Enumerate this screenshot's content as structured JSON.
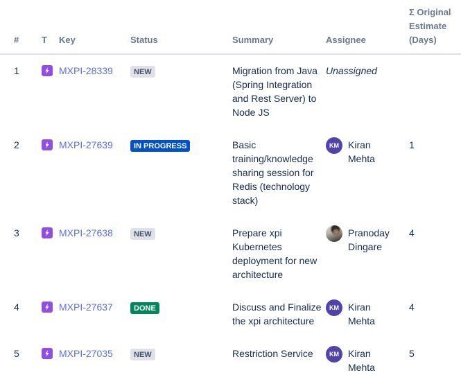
{
  "table": {
    "columns": [
      {
        "key": "num",
        "label": "#"
      },
      {
        "key": "type",
        "label": "T"
      },
      {
        "key": "key",
        "label": "Key"
      },
      {
        "key": "status",
        "label": "Status"
      },
      {
        "key": "summary",
        "label": "Summary"
      },
      {
        "key": "assignee",
        "label": "Assignee"
      },
      {
        "key": "estimate",
        "label": "Σ Original Estimate (Days)"
      }
    ],
    "rows": [
      {
        "num": "1",
        "type_icon": "epic-icon",
        "key": "MXPI-28339",
        "status": "NEW",
        "summary": "Migration from Java (Spring Integration and Rest Server) to Node JS",
        "assignee": {
          "name": "Unassigned",
          "unassigned": true
        },
        "estimate": ""
      },
      {
        "num": "2",
        "type_icon": "epic-icon",
        "key": "MXPI-27639",
        "status": "IN PROGRESS",
        "summary": "Basic training/knowledge sharing session for Redis (technology stack)",
        "assignee": {
          "name": "Kiran Mehta",
          "initials": "KM",
          "avatar": "initials"
        },
        "estimate": "1"
      },
      {
        "num": "3",
        "type_icon": "epic-icon",
        "key": "MXPI-27638",
        "status": "NEW",
        "summary": "Prepare xpi Kubernetes deployment for new architecture",
        "assignee": {
          "name": "Pranoday Dingare",
          "avatar": "photo"
        },
        "estimate": "4"
      },
      {
        "num": "4",
        "type_icon": "epic-icon",
        "key": "MXPI-27637",
        "status": "DONE",
        "summary": "Discuss and Finalize the xpi architecture",
        "assignee": {
          "name": "Kiran Mehta",
          "initials": "KM",
          "avatar": "initials"
        },
        "estimate": "4"
      },
      {
        "num": "5",
        "type_icon": "epic-icon",
        "key": "MXPI-27035",
        "status": "NEW",
        "summary": "Restriction Service",
        "assignee": {
          "name": "Kiran Mehta",
          "initials": "KM",
          "avatar": "initials"
        },
        "estimate": "5"
      }
    ]
  },
  "colors": {
    "text": "#172B4D",
    "header_text": "#6B778C",
    "issue_key_link": "#5B6EE1",
    "header_border": "#DFE1E6",
    "epic_icon": "#904EE2",
    "badge_new_bg": "#DFE1E6",
    "badge_new_text": "#42526E",
    "badge_in_progress_bg": "#0052CC",
    "badge_done_bg": "#00875A",
    "avatar_initials_bg": "#5243AA"
  }
}
